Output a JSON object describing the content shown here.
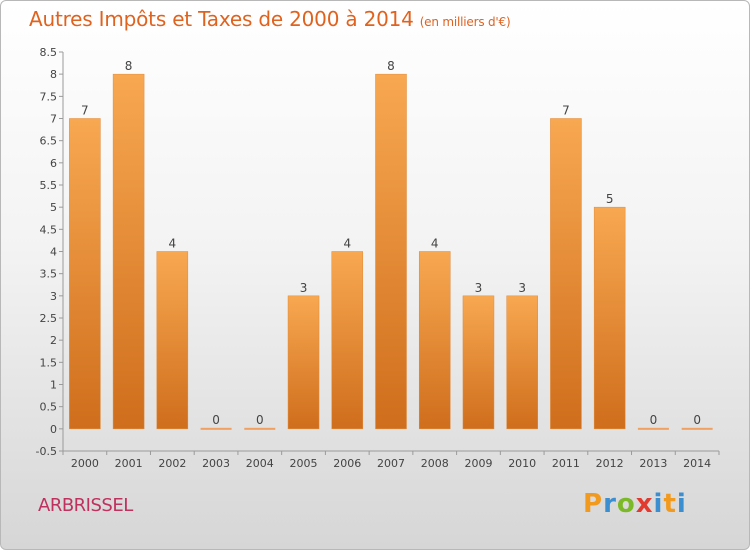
{
  "header": {
    "title": "Autres Impôts et Taxes de 2000 à 2014",
    "subtitle": "(en milliers d'€)"
  },
  "footer": {
    "commune": "ARBRISSEL",
    "logo_text": "Proxiti"
  },
  "colors": {
    "bar_light": "#f8a851",
    "bar_dark": "#cf6e1c",
    "title": "#e0621f",
    "commune": "#c0305f"
  },
  "chart_data": {
    "type": "bar",
    "title": "Autres Impôts et Taxes de 2000 à 2014",
    "subtitle": "(en milliers d'€)",
    "categories": [
      "2000",
      "2001",
      "2002",
      "2003",
      "2004",
      "2005",
      "2006",
      "2007",
      "2008",
      "2009",
      "2010",
      "2011",
      "2012",
      "2013",
      "2014"
    ],
    "values": [
      7,
      8,
      4,
      0,
      0,
      3,
      4,
      8,
      4,
      3,
      3,
      7,
      5,
      0,
      0
    ],
    "data_labels": [
      "7",
      "8",
      "4",
      "0",
      "0",
      "3",
      "4",
      "8",
      "4",
      "3",
      "3",
      "7",
      "5",
      "0",
      "0"
    ],
    "ylim": [
      -0.5,
      8.5
    ],
    "yticks": [
      "-0.5",
      "0",
      "0.5",
      "1",
      "1.5",
      "2",
      "2.5",
      "3",
      "3.5",
      "4",
      "4.5",
      "5",
      "5.5",
      "6",
      "6.5",
      "7",
      "7.5",
      "8",
      "8.5"
    ],
    "grid": false,
    "legend": "none"
  }
}
